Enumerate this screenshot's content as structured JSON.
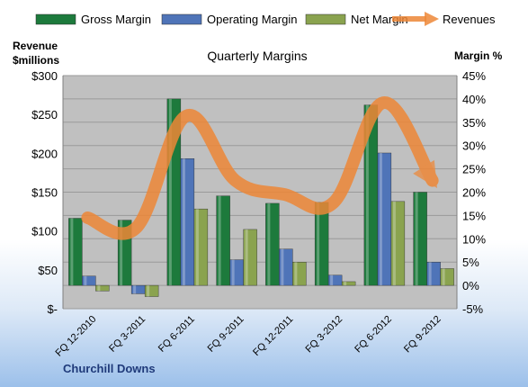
{
  "chart_data": {
    "type": "bar",
    "title": "Quarterly Margins",
    "categories": [
      "FQ 12-2010",
      "FQ 3-2011",
      "FQ 6-2011",
      "FQ 9-2011",
      "FQ 12-2011",
      "FQ 3-2012",
      "FQ 6-2012",
      "FQ 9-2012"
    ],
    "series": [
      {
        "name": "Gross Margin",
        "axis": "right",
        "color": "#1d7a3c",
        "values": [
          14.4,
          14.0,
          40.0,
          19.2,
          17.6,
          17.8,
          38.7,
          20.0
        ]
      },
      {
        "name": "Operating Margin",
        "axis": "right",
        "color": "#4f74b8",
        "values": [
          2.0,
          -1.8,
          27.2,
          5.5,
          7.8,
          2.2,
          28.4,
          5.0
        ]
      },
      {
        "name": "Net Margin",
        "axis": "right",
        "color": "#8aa34f",
        "values": [
          -1.2,
          -2.4,
          16.4,
          12.0,
          5.0,
          0.8,
          18.0,
          3.6
        ]
      }
    ],
    "line": {
      "name": "Revenues",
      "axis": "left",
      "color": "#ed8737",
      "values": [
        117,
        105,
        248,
        165,
        147,
        137,
        265,
        165
      ]
    },
    "ylabel_left": "Revenue\n$millions",
    "ylabel_right": "Margin %",
    "ylim_left": [
      0,
      300
    ],
    "yticks_left": [
      "$-",
      "$50",
      "$100",
      "$150",
      "$200",
      "$250",
      "$300"
    ],
    "ylim_right": [
      -5,
      45
    ],
    "yticks_right": [
      "-5%",
      "0%",
      "5%",
      "10%",
      "15%",
      "20%",
      "25%",
      "30%",
      "35%",
      "40%",
      "45%"
    ],
    "grid": true,
    "legend_position": "top",
    "plot_background": "#c0c0c0"
  },
  "footer": {
    "company": "Churchill Downs"
  }
}
